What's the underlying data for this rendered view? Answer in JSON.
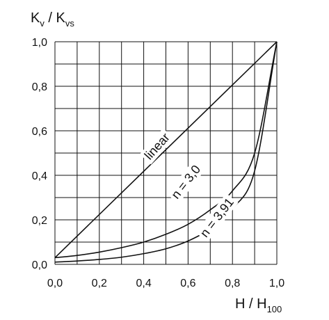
{
  "chart_data": {
    "type": "line",
    "y_axis_title": {
      "main": "K",
      "sub": "v",
      "sep": " / ",
      "main2": "K",
      "sub2": "vs"
    },
    "x_axis_title": {
      "main": "H / H",
      "sub": "100"
    },
    "xlim": [
      0,
      1
    ],
    "ylim": [
      0,
      1
    ],
    "x_ticks": [
      0.0,
      0.2,
      0.4,
      0.6,
      0.8,
      1.0
    ],
    "y_ticks": [
      0.0,
      0.2,
      0.4,
      0.6,
      0.8,
      1.0
    ],
    "x_tick_labels": [
      "0,0",
      "0,2",
      "0,4",
      "0,6",
      "0,8",
      "1,0"
    ],
    "y_tick_labels": [
      "0,0",
      "0,2",
      "0,4",
      "0,6",
      "0,8",
      "1,0"
    ],
    "grid": true,
    "grid_step": 0.1,
    "series": [
      {
        "name": "linear",
        "x": [
          0.0,
          1.0
        ],
        "y": [
          0.03,
          1.0
        ]
      },
      {
        "name": "n = 3,0",
        "x": [
          0.0,
          0.1,
          0.2,
          0.3,
          0.4,
          0.5,
          0.6,
          0.7,
          0.8,
          0.9,
          1.0
        ],
        "y": [
          0.03,
          0.04,
          0.055,
          0.075,
          0.1,
          0.135,
          0.18,
          0.245,
          0.33,
          0.5,
          1.0
        ]
      },
      {
        "name": "n = 3,91",
        "x": [
          0.0,
          0.1,
          0.2,
          0.3,
          0.4,
          0.5,
          0.6,
          0.7,
          0.8,
          0.9,
          1.0
        ],
        "y": [
          0.01,
          0.015,
          0.022,
          0.032,
          0.048,
          0.07,
          0.105,
          0.16,
          0.25,
          0.42,
          1.0
        ]
      }
    ]
  }
}
